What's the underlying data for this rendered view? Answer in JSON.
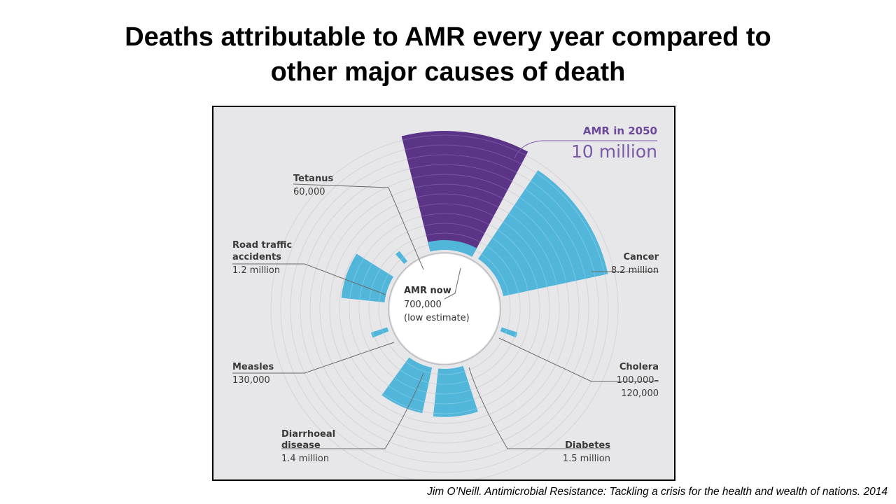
{
  "title_lines": [
    "Deaths attributable to AMR every year compared to",
    "other major causes of death"
  ],
  "citation": "Jim O’Neill. Antimicrobial Resistance: Tackling a crisis for the health and wealth of nations. 2014",
  "colors": {
    "background": "#e7e7e9",
    "ring": "#d4d4d8",
    "amr_2050": "#5b3488",
    "other_causes": "#52b6da",
    "leader_line": "#6a6a6a",
    "amr_accent": "#7a5aa6"
  },
  "chart_data": {
    "type": "polar-bar",
    "title": "",
    "center_label": {
      "name": "AMR now",
      "value": "700,000",
      "note": "(low estimate)"
    },
    "highlight": {
      "name": "AMR in 2050",
      "value_label": "10 million",
      "value": 10000000
    },
    "categories": [
      "AMR in 2050",
      "Cancer",
      "Cholera",
      "Diabetes",
      "Diarrhoeal disease",
      "Measles",
      "Road traffic accidents",
      "Tetanus"
    ],
    "series": [
      {
        "values": [
          10000000,
          8200000,
          120000,
          1500000,
          1400000,
          130000,
          1200000,
          60000
        ]
      }
    ],
    "labels": [
      {
        "key": "cancer",
        "name_lines": [
          "Cancer"
        ],
        "value_lines": [
          "8.2 million"
        ]
      },
      {
        "key": "cholera",
        "name_lines": [
          "Cholera"
        ],
        "value_lines": [
          "100,000–",
          "120,000"
        ]
      },
      {
        "key": "diabetes",
        "name_lines": [
          "Diabetes"
        ],
        "value_lines": [
          "1.5 million"
        ]
      },
      {
        "key": "diarrhoea",
        "name_lines": [
          "Diarrhoeal",
          "disease"
        ],
        "value_lines": [
          "1.4 million"
        ]
      },
      {
        "key": "measles",
        "name_lines": [
          "Measles"
        ],
        "value_lines": [
          "130,000"
        ]
      },
      {
        "key": "road",
        "name_lines": [
          "Road traffic",
          "accidents"
        ],
        "value_lines": [
          "1.2 million"
        ]
      },
      {
        "key": "tetanus",
        "name_lines": [
          "Tetanus"
        ],
        "value_lines": [
          "60,000"
        ]
      }
    ]
  }
}
